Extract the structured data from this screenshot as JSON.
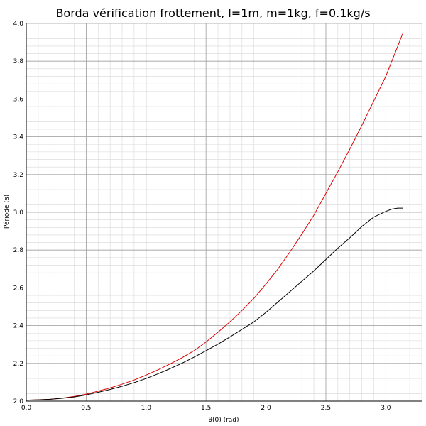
{
  "chart_data": {
    "type": "line",
    "title": "Borda vérification frottement, l=1m, m=1kg, f=0.1kg/s",
    "xlabel": "θ(0) (rad)",
    "ylabel": "Période (s)",
    "xlim": [
      0.0,
      3.3
    ],
    "ylim": [
      2.0,
      4.0
    ],
    "x_ticks": [
      0.0,
      0.5,
      1.0,
      1.5,
      2.0,
      2.5,
      3.0
    ],
    "x_tick_labels": [
      "0.0",
      "0.5",
      "1.0",
      "1.5",
      "2.0",
      "2.5",
      "3.0"
    ],
    "y_ticks": [
      2.0,
      2.2,
      2.4,
      2.6,
      2.8,
      3.0,
      3.2,
      3.4,
      3.6,
      3.8,
      4.0
    ],
    "y_tick_labels": [
      "2.0",
      "2.2",
      "2.4",
      "2.6",
      "2.8",
      "3.0",
      "3.2",
      "3.4",
      "3.6",
      "3.8",
      "4.0"
    ],
    "grid": true,
    "minor_grid": true,
    "legend": false,
    "series": [
      {
        "color": "#dd0000",
        "x": [
          0.0,
          0.1,
          0.2,
          0.3,
          0.4,
          0.5,
          0.6,
          0.7,
          0.8,
          0.9,
          1.0,
          1.1,
          1.2,
          1.3,
          1.4,
          1.5,
          1.6,
          1.7,
          1.8,
          1.9,
          2.0,
          2.1,
          2.2,
          2.3,
          2.4,
          2.5,
          2.6,
          2.7,
          2.8,
          2.9,
          3.0,
          3.1,
          3.14
        ],
        "y": [
          2.005,
          2.007,
          2.01,
          2.016,
          2.025,
          2.037,
          2.053,
          2.07,
          2.09,
          2.112,
          2.138,
          2.166,
          2.197,
          2.23,
          2.267,
          2.313,
          2.365,
          2.42,
          2.48,
          2.545,
          2.62,
          2.7,
          2.79,
          2.885,
          2.985,
          3.1,
          3.215,
          3.335,
          3.46,
          3.59,
          3.72,
          3.88,
          3.945
        ]
      },
      {
        "color": "#000000",
        "x": [
          0.0,
          0.1,
          0.2,
          0.3,
          0.4,
          0.5,
          0.6,
          0.7,
          0.8,
          0.9,
          1.0,
          1.1,
          1.2,
          1.3,
          1.4,
          1.5,
          1.6,
          1.7,
          1.8,
          1.9,
          2.0,
          2.1,
          2.2,
          2.3,
          2.4,
          2.5,
          2.6,
          2.7,
          2.8,
          2.9,
          3.0,
          3.05,
          3.1,
          3.14
        ],
        "y": [
          2.005,
          2.007,
          2.01,
          2.015,
          2.022,
          2.033,
          2.047,
          2.062,
          2.079,
          2.098,
          2.12,
          2.145,
          2.172,
          2.201,
          2.233,
          2.267,
          2.302,
          2.34,
          2.38,
          2.42,
          2.47,
          2.525,
          2.58,
          2.635,
          2.69,
          2.75,
          2.81,
          2.865,
          2.925,
          2.975,
          3.005,
          3.017,
          3.022,
          3.022
        ]
      }
    ]
  }
}
